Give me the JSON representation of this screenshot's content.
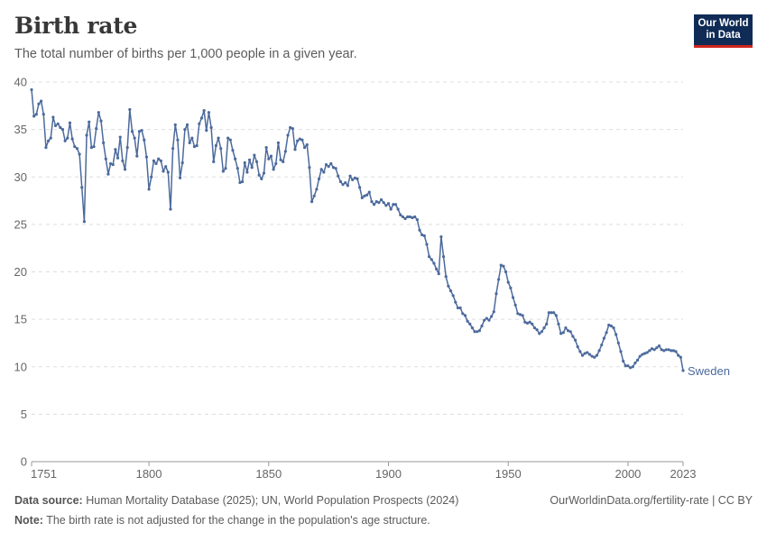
{
  "header": {
    "title": "Birth rate",
    "subtitle": "The total number of births per 1,000 people in a given year.",
    "logo_line1": "Our World",
    "logo_line2": "in Data"
  },
  "footer": {
    "source_label": "Data source:",
    "source_text": "Human Mortality Database (2025); UN, World Population Prospects (2024)",
    "note_label": "Note:",
    "note_text": "The birth rate is not adjusted for the change in the population's age structure.",
    "credit": "OurWorldinData.org/fertility-rate | CC BY"
  },
  "colors": {
    "series": "#4c6a9c",
    "grid": "#dddddd",
    "axis": "#999999"
  },
  "chart_data": {
    "type": "line",
    "title": "Birth rate",
    "xlabel": "",
    "ylabel": "",
    "xlim": [
      1751,
      2023
    ],
    "ylim": [
      0,
      40
    ],
    "x_ticks": [
      "1751",
      "1800",
      "1850",
      "1900",
      "1950",
      "2000",
      "2023"
    ],
    "y_ticks": [
      "0",
      "5",
      "10",
      "15",
      "20",
      "25",
      "30",
      "35",
      "40"
    ],
    "grid": true,
    "series": [
      {
        "name": "Sweden",
        "points": [
          [
            1751,
            39.2
          ],
          [
            1752,
            36.4
          ],
          [
            1753,
            36.6
          ],
          [
            1754,
            37.7
          ],
          [
            1755,
            38.0
          ],
          [
            1756,
            36.6
          ],
          [
            1757,
            33.1
          ],
          [
            1758,
            33.8
          ],
          [
            1759,
            34.1
          ],
          [
            1760,
            36.3
          ],
          [
            1761,
            35.4
          ],
          [
            1762,
            35.6
          ],
          [
            1763,
            35.2
          ],
          [
            1764,
            35.0
          ],
          [
            1765,
            33.8
          ],
          [
            1766,
            34.1
          ],
          [
            1767,
            35.7
          ],
          [
            1768,
            34.0
          ],
          [
            1769,
            33.2
          ],
          [
            1770,
            33.0
          ],
          [
            1771,
            32.4
          ],
          [
            1772,
            28.9
          ],
          [
            1773,
            25.3
          ],
          [
            1774,
            34.4
          ],
          [
            1775,
            35.8
          ],
          [
            1776,
            33.1
          ],
          [
            1777,
            33.2
          ],
          [
            1778,
            35.1
          ],
          [
            1779,
            36.8
          ],
          [
            1780,
            35.9
          ],
          [
            1781,
            33.6
          ],
          [
            1782,
            31.9
          ],
          [
            1783,
            30.3
          ],
          [
            1784,
            31.4
          ],
          [
            1785,
            31.3
          ],
          [
            1786,
            32.9
          ],
          [
            1787,
            32.0
          ],
          [
            1788,
            34.2
          ],
          [
            1789,
            31.7
          ],
          [
            1790,
            30.8
          ],
          [
            1791,
            33.1
          ],
          [
            1792,
            37.1
          ],
          [
            1793,
            34.8
          ],
          [
            1794,
            34.1
          ],
          [
            1795,
            32.2
          ],
          [
            1796,
            34.8
          ],
          [
            1797,
            34.9
          ],
          [
            1798,
            33.9
          ],
          [
            1799,
            32.1
          ],
          [
            1800,
            28.7
          ],
          [
            1801,
            30.0
          ],
          [
            1802,
            31.7
          ],
          [
            1803,
            31.4
          ],
          [
            1804,
            31.9
          ],
          [
            1805,
            31.7
          ],
          [
            1806,
            30.6
          ],
          [
            1807,
            31.1
          ],
          [
            1808,
            30.5
          ],
          [
            1809,
            26.6
          ],
          [
            1810,
            33.0
          ],
          [
            1811,
            35.5
          ],
          [
            1812,
            33.9
          ],
          [
            1813,
            29.9
          ],
          [
            1814,
            31.5
          ],
          [
            1815,
            35.0
          ],
          [
            1816,
            35.5
          ],
          [
            1817,
            33.6
          ],
          [
            1818,
            34.1
          ],
          [
            1819,
            33.2
          ],
          [
            1820,
            33.3
          ],
          [
            1821,
            35.6
          ],
          [
            1822,
            36.2
          ],
          [
            1823,
            37.0
          ],
          [
            1824,
            34.9
          ],
          [
            1825,
            36.8
          ],
          [
            1826,
            35.2
          ],
          [
            1827,
            31.6
          ],
          [
            1828,
            33.3
          ],
          [
            1829,
            34.1
          ],
          [
            1830,
            33.0
          ],
          [
            1831,
            30.6
          ],
          [
            1832,
            30.9
          ],
          [
            1833,
            34.1
          ],
          [
            1834,
            33.9
          ],
          [
            1835,
            32.8
          ],
          [
            1836,
            31.9
          ],
          [
            1837,
            30.9
          ],
          [
            1838,
            29.4
          ],
          [
            1839,
            29.5
          ],
          [
            1840,
            31.5
          ],
          [
            1841,
            30.5
          ],
          [
            1842,
            31.8
          ],
          [
            1843,
            31.0
          ],
          [
            1844,
            32.3
          ],
          [
            1845,
            31.6
          ],
          [
            1846,
            30.2
          ],
          [
            1847,
            29.8
          ],
          [
            1848,
            30.4
          ],
          [
            1849,
            33.1
          ],
          [
            1850,
            31.9
          ],
          [
            1851,
            32.2
          ],
          [
            1852,
            30.8
          ],
          [
            1853,
            31.4
          ],
          [
            1854,
            33.6
          ],
          [
            1855,
            31.8
          ],
          [
            1856,
            31.6
          ],
          [
            1857,
            32.7
          ],
          [
            1858,
            34.4
          ],
          [
            1859,
            35.2
          ],
          [
            1860,
            35.1
          ],
          [
            1861,
            32.9
          ],
          [
            1862,
            33.8
          ],
          [
            1863,
            34.0
          ],
          [
            1864,
            33.9
          ],
          [
            1865,
            33.1
          ],
          [
            1866,
            33.4
          ],
          [
            1867,
            31.0
          ],
          [
            1868,
            27.4
          ],
          [
            1869,
            28.0
          ],
          [
            1870,
            28.7
          ],
          [
            1871,
            29.8
          ],
          [
            1872,
            30.8
          ],
          [
            1873,
            30.5
          ],
          [
            1874,
            31.3
          ],
          [
            1875,
            31.1
          ],
          [
            1876,
            31.4
          ],
          [
            1877,
            31.0
          ],
          [
            1878,
            30.9
          ],
          [
            1879,
            30.1
          ],
          [
            1880,
            29.5
          ],
          [
            1881,
            29.2
          ],
          [
            1882,
            29.4
          ],
          [
            1883,
            29.1
          ],
          [
            1884,
            30.1
          ],
          [
            1885,
            29.7
          ],
          [
            1886,
            29.9
          ],
          [
            1887,
            29.8
          ],
          [
            1888,
            28.9
          ],
          [
            1889,
            27.8
          ],
          [
            1890,
            28.0
          ],
          [
            1891,
            28.1
          ],
          [
            1892,
            28.4
          ],
          [
            1893,
            27.4
          ],
          [
            1894,
            27.1
          ],
          [
            1895,
            27.4
          ],
          [
            1896,
            27.3
          ],
          [
            1897,
            27.6
          ],
          [
            1898,
            27.3
          ],
          [
            1899,
            27.0
          ],
          [
            1900,
            27.2
          ],
          [
            1901,
            26.6
          ],
          [
            1902,
            27.1
          ],
          [
            1903,
            27.1
          ],
          [
            1904,
            26.6
          ],
          [
            1905,
            26.0
          ],
          [
            1906,
            25.8
          ],
          [
            1907,
            25.6
          ],
          [
            1908,
            25.8
          ],
          [
            1909,
            25.8
          ],
          [
            1910,
            25.7
          ],
          [
            1911,
            25.8
          ],
          [
            1912,
            25.5
          ],
          [
            1913,
            24.4
          ],
          [
            1914,
            23.9
          ],
          [
            1915,
            23.8
          ],
          [
            1916,
            22.9
          ],
          [
            1917,
            21.6
          ],
          [
            1918,
            21.3
          ],
          [
            1919,
            20.9
          ],
          [
            1920,
            20.3
          ],
          [
            1921,
            19.8
          ],
          [
            1922,
            23.7
          ],
          [
            1923,
            21.6
          ],
          [
            1924,
            19.5
          ],
          [
            1925,
            18.5
          ],
          [
            1926,
            18.0
          ],
          [
            1927,
            17.5
          ],
          [
            1928,
            16.8
          ],
          [
            1929,
            16.2
          ],
          [
            1930,
            16.2
          ],
          [
            1931,
            15.6
          ],
          [
            1932,
            15.4
          ],
          [
            1933,
            14.8
          ],
          [
            1934,
            14.5
          ],
          [
            1935,
            14.1
          ],
          [
            1936,
            13.7
          ],
          [
            1937,
            13.7
          ],
          [
            1938,
            13.8
          ],
          [
            1939,
            14.3
          ],
          [
            1940,
            14.9
          ],
          [
            1941,
            15.1
          ],
          [
            1942,
            14.9
          ],
          [
            1943,
            15.3
          ],
          [
            1944,
            15.8
          ],
          [
            1945,
            17.7
          ],
          [
            1946,
            19.2
          ],
          [
            1947,
            20.7
          ],
          [
            1948,
            20.6
          ],
          [
            1949,
            20.0
          ],
          [
            1950,
            18.9
          ],
          [
            1951,
            18.3
          ],
          [
            1952,
            17.3
          ],
          [
            1953,
            16.5
          ],
          [
            1954,
            15.6
          ],
          [
            1955,
            15.5
          ],
          [
            1956,
            15.4
          ],
          [
            1957,
            14.7
          ],
          [
            1958,
            14.6
          ],
          [
            1959,
            14.7
          ],
          [
            1960,
            14.5
          ],
          [
            1961,
            14.1
          ],
          [
            1962,
            13.9
          ],
          [
            1963,
            13.5
          ],
          [
            1964,
            13.7
          ],
          [
            1965,
            14.1
          ],
          [
            1966,
            14.5
          ],
          [
            1967,
            15.7
          ],
          [
            1968,
            15.7
          ],
          [
            1969,
            15.7
          ],
          [
            1970,
            15.4
          ],
          [
            1971,
            14.5
          ],
          [
            1972,
            13.5
          ],
          [
            1973,
            13.6
          ],
          [
            1974,
            14.1
          ],
          [
            1975,
            13.8
          ],
          [
            1976,
            13.7
          ],
          [
            1977,
            13.2
          ],
          [
            1978,
            12.8
          ],
          [
            1979,
            12.1
          ],
          [
            1980,
            11.6
          ],
          [
            1981,
            11.2
          ],
          [
            1982,
            11.4
          ],
          [
            1983,
            11.5
          ],
          [
            1984,
            11.3
          ],
          [
            1985,
            11.1
          ],
          [
            1986,
            11.0
          ],
          [
            1987,
            11.2
          ],
          [
            1988,
            11.7
          ],
          [
            1989,
            12.3
          ],
          [
            1990,
            13.0
          ],
          [
            1991,
            13.6
          ],
          [
            1992,
            14.4
          ],
          [
            1993,
            14.3
          ],
          [
            1994,
            14.1
          ],
          [
            1995,
            13.4
          ],
          [
            1996,
            12.5
          ],
          [
            1997,
            11.6
          ],
          [
            1998,
            10.6
          ],
          [
            1999,
            10.1
          ],
          [
            2000,
            10.1
          ],
          [
            2001,
            9.9
          ],
          [
            2002,
            10.0
          ],
          [
            2003,
            10.4
          ],
          [
            2004,
            10.7
          ],
          [
            2005,
            11.1
          ],
          [
            2006,
            11.3
          ],
          [
            2007,
            11.4
          ],
          [
            2008,
            11.5
          ],
          [
            2009,
            11.7
          ],
          [
            2010,
            11.9
          ],
          [
            2011,
            11.8
          ],
          [
            2012,
            12.0
          ],
          [
            2013,
            12.2
          ],
          [
            2014,
            11.8
          ],
          [
            2015,
            11.7
          ],
          [
            2016,
            11.8
          ],
          [
            2017,
            11.8
          ],
          [
            2018,
            11.7
          ],
          [
            2019,
            11.7
          ],
          [
            2020,
            11.6
          ],
          [
            2021,
            11.2
          ],
          [
            2022,
            11.0
          ],
          [
            2023,
            9.6
          ]
        ]
      }
    ]
  }
}
